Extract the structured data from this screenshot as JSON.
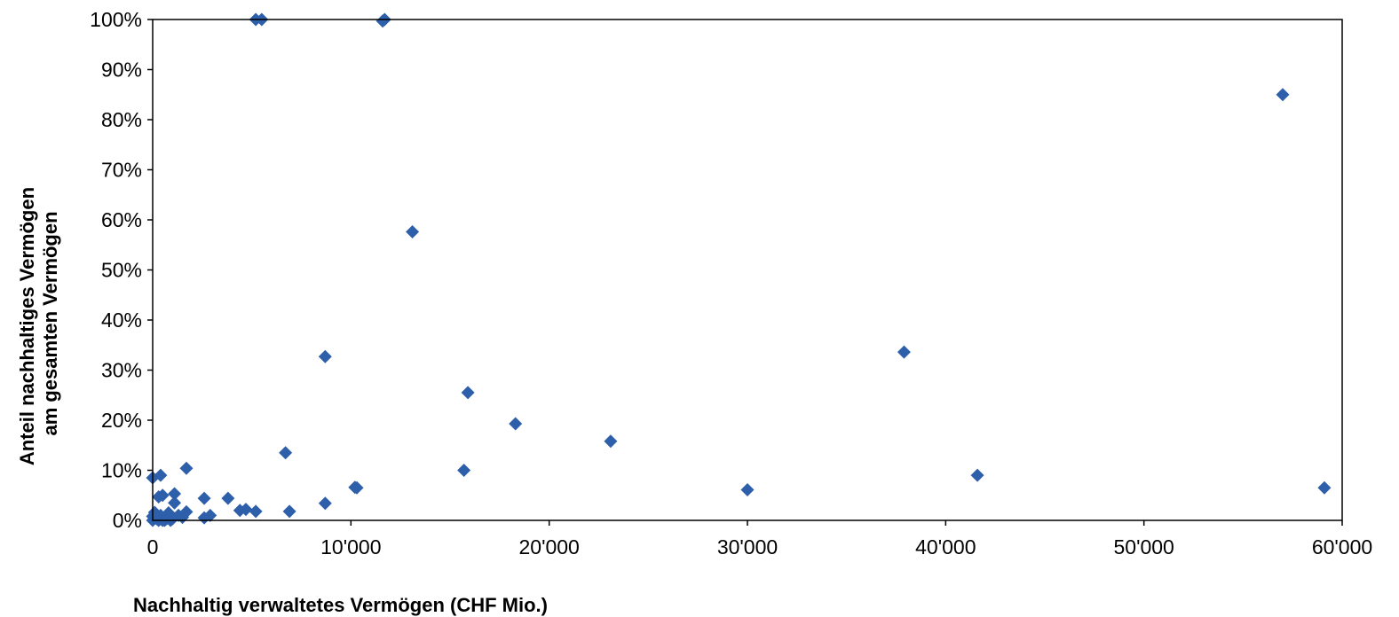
{
  "chart_data": {
    "type": "scatter",
    "title": "",
    "xlabel": "Nachhaltig verwaltetes Vermögen (CHF Mio.)",
    "ylabel_lines": [
      "Anteil nachhaltiges Vermögen",
      "am gesamten Vermögen"
    ],
    "xlim": [
      0,
      60000
    ],
    "ylim": [
      0,
      1
    ],
    "x_ticks": [
      0,
      10000,
      20000,
      30000,
      40000,
      50000,
      60000
    ],
    "x_tick_labels": [
      "0",
      "10'000",
      "20'000",
      "30'000",
      "40'000",
      "50'000",
      "60'000"
    ],
    "y_ticks": [
      0,
      0.1,
      0.2,
      0.3,
      0.4,
      0.5,
      0.6,
      0.7,
      0.8,
      0.9,
      1.0
    ],
    "y_tick_labels": [
      "0%",
      "10%",
      "20%",
      "30%",
      "40%",
      "50%",
      "60%",
      "70%",
      "80%",
      "90%",
      "100%"
    ],
    "grid": false,
    "marker_color": "#2E5FAA",
    "marker": "diamond",
    "points": [
      {
        "x": 5200,
        "y": 1.0
      },
      {
        "x": 5500,
        "y": 1.0
      },
      {
        "x": 11600,
        "y": 0.997
      },
      {
        "x": 11700,
        "y": 1.0
      },
      {
        "x": 57000,
        "y": 0.85
      },
      {
        "x": 13100,
        "y": 0.576
      },
      {
        "x": 37900,
        "y": 0.336
      },
      {
        "x": 8700,
        "y": 0.327
      },
      {
        "x": 15900,
        "y": 0.255
      },
      {
        "x": 18300,
        "y": 0.193
      },
      {
        "x": 23100,
        "y": 0.158
      },
      {
        "x": 6700,
        "y": 0.135
      },
      {
        "x": 1700,
        "y": 0.104
      },
      {
        "x": 15700,
        "y": 0.1
      },
      {
        "x": 41600,
        "y": 0.09
      },
      {
        "x": 400,
        "y": 0.09
      },
      {
        "x": 0,
        "y": 0.085
      },
      {
        "x": 10200,
        "y": 0.066
      },
      {
        "x": 10300,
        "y": 0.065
      },
      {
        "x": 59100,
        "y": 0.065
      },
      {
        "x": 30000,
        "y": 0.061
      },
      {
        "x": 1100,
        "y": 0.053
      },
      {
        "x": 500,
        "y": 0.05
      },
      {
        "x": 300,
        "y": 0.047
      },
      {
        "x": 2600,
        "y": 0.044
      },
      {
        "x": 3800,
        "y": 0.044
      },
      {
        "x": 1100,
        "y": 0.035
      },
      {
        "x": 8700,
        "y": 0.034
      },
      {
        "x": 4400,
        "y": 0.02
      },
      {
        "x": 4700,
        "y": 0.022
      },
      {
        "x": 5200,
        "y": 0.018
      },
      {
        "x": 6900,
        "y": 0.018
      },
      {
        "x": 1700,
        "y": 0.017
      },
      {
        "x": 100,
        "y": 0.016
      },
      {
        "x": 800,
        "y": 0.015
      },
      {
        "x": 400,
        "y": 0.01
      },
      {
        "x": 1300,
        "y": 0.01
      },
      {
        "x": 2900,
        "y": 0.01
      },
      {
        "x": 0,
        "y": 0.008
      },
      {
        "x": 1500,
        "y": 0.006
      },
      {
        "x": 2600,
        "y": 0.005
      },
      {
        "x": 200,
        "y": 0.003
      },
      {
        "x": 700,
        "y": 0.003
      },
      {
        "x": 1000,
        "y": 0.003
      },
      {
        "x": 0,
        "y": 0.0
      },
      {
        "x": 300,
        "y": 0.0
      },
      {
        "x": 500,
        "y": 0.0
      },
      {
        "x": 600,
        "y": 0.0
      },
      {
        "x": 900,
        "y": 0.0
      }
    ]
  }
}
